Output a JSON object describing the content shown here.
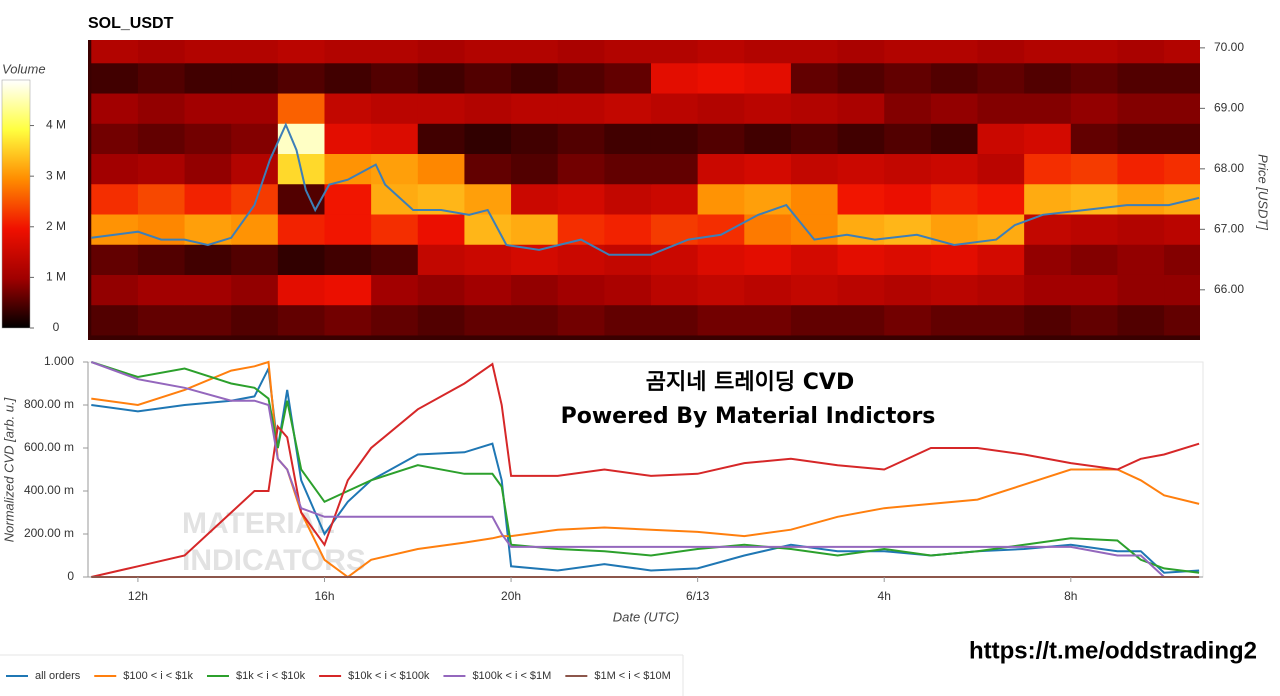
{
  "chart_data": [
    {
      "type": "heatmap",
      "title": "SOL_USDT",
      "xlim": [
        10.93,
        34.77
      ],
      "xbins": [
        11,
        12,
        13,
        14,
        15,
        16,
        17,
        18,
        19,
        20,
        21,
        22,
        23,
        24,
        25,
        26,
        27,
        28,
        29,
        30,
        31,
        32,
        33,
        34,
        35
      ],
      "ybins": [
        65.25,
        65.75,
        66.25,
        66.75,
        67.25,
        67.75,
        68.25,
        68.75,
        69.25,
        69.75,
        70.25
      ],
      "values": [
        [
          0.5,
          0.6,
          0.6,
          0.5,
          0.6,
          0.7,
          0.6,
          0.5,
          0.6,
          0.6,
          0.7,
          0.6,
          0.6,
          0.7,
          0.7,
          0.6,
          0.6,
          0.7,
          0.6,
          0.6,
          0.5,
          0.6,
          0.5,
          0.6
        ],
        [
          0.9,
          1.0,
          1.0,
          0.9,
          1.8,
          1.9,
          1.0,
          0.9,
          1.0,
          0.9,
          1.0,
          1.1,
          1.3,
          1.4,
          1.3,
          1.4,
          1.3,
          1.2,
          1.3,
          1.2,
          1.0,
          1.0,
          0.9,
          0.9
        ],
        [
          0.6,
          0.5,
          0.4,
          0.5,
          0.3,
          0.4,
          0.5,
          1.4,
          1.5,
          1.6,
          1.5,
          1.4,
          1.5,
          1.7,
          1.8,
          1.6,
          1.8,
          1.7,
          1.8,
          1.6,
          0.9,
          0.8,
          0.9,
          0.8
        ],
        [
          3.0,
          2.9,
          3.1,
          3.0,
          2.1,
          2.0,
          2.2,
          1.9,
          3.3,
          3.2,
          2.2,
          2.1,
          2.3,
          2.2,
          2.8,
          2.9,
          3.2,
          3.3,
          3.1,
          3.2,
          1.4,
          1.3,
          1.2,
          1.3
        ],
        [
          2.2,
          2.4,
          2.1,
          2.3,
          0.5,
          2.0,
          3.2,
          3.3,
          3.1,
          1.5,
          1.6,
          1.4,
          1.5,
          3.0,
          3.1,
          2.9,
          2.0,
          1.9,
          2.1,
          2.0,
          3.2,
          3.3,
          3.1,
          3.2
        ],
        [
          1.0,
          1.1,
          0.9,
          1.2,
          3.6,
          3.0,
          3.1,
          2.9,
          0.6,
          0.5,
          0.7,
          0.6,
          0.6,
          1.5,
          1.6,
          1.4,
          1.5,
          1.4,
          1.5,
          1.3,
          2.2,
          2.3,
          2.1,
          2.2
        ],
        [
          0.7,
          0.6,
          0.7,
          0.8,
          4.6,
          1.8,
          1.7,
          0.4,
          0.3,
          0.4,
          0.5,
          0.4,
          0.4,
          0.5,
          0.4,
          0.5,
          0.4,
          0.5,
          0.4,
          1.5,
          1.6,
          0.6,
          0.5,
          0.5
        ],
        [
          1.0,
          0.9,
          1.0,
          1.0,
          2.6,
          1.4,
          1.3,
          1.3,
          1.2,
          1.3,
          1.3,
          1.4,
          1.3,
          1.2,
          1.3,
          1.2,
          1.1,
          0.8,
          0.9,
          0.8,
          0.8,
          0.9,
          0.8,
          0.8
        ],
        [
          0.4,
          0.5,
          0.4,
          0.4,
          0.5,
          0.4,
          0.5,
          0.4,
          0.5,
          0.4,
          0.5,
          0.6,
          1.8,
          1.9,
          1.8,
          0.6,
          0.5,
          0.6,
          0.5,
          0.6,
          0.5,
          0.6,
          0.5,
          0.5
        ],
        [
          1.2,
          1.1,
          1.2,
          1.2,
          1.3,
          1.2,
          1.2,
          1.1,
          1.2,
          1.2,
          1.1,
          1.2,
          1.2,
          1.3,
          1.2,
          1.2,
          1.1,
          1.2,
          1.2,
          1.1,
          1.2,
          1.2,
          1.1,
          1.2
        ]
      ],
      "colormap": [
        "#000000",
        "#a00000",
        "#f01000",
        "#ff8c00",
        "#ffff40",
        "#ffffff"
      ],
      "colorbar": {
        "label": "Volume",
        "zlim": [
          0,
          4.9
        ],
        "ticks": [
          0,
          {
            "value": 1,
            "label": "1 M"
          },
          {
            "value": 2,
            "label": "2 M"
          },
          {
            "value": 3,
            "label": "3 M"
          },
          {
            "value": 4,
            "label": "4 M"
          }
        ]
      },
      "ylabel": "Price [USDT]",
      "ylim": [
        65.17,
        70.13
      ],
      "yticks": [
        {
          "value": 66,
          "label": "66.00"
        },
        {
          "value": 67,
          "label": "67.00"
        },
        {
          "value": 68,
          "label": "68.00"
        },
        {
          "value": 69,
          "label": "69.00"
        },
        {
          "value": 70,
          "label": "70.00"
        }
      ],
      "price": {
        "color": "#3d7fb8",
        "x": [
          11,
          11.5,
          12,
          12.5,
          13,
          13.5,
          14,
          14.5,
          14.83,
          15.17,
          15.4,
          15.6,
          15.8,
          16.1,
          16.5,
          17.1,
          17.3,
          17.9,
          18.5,
          19.1,
          19.5,
          19.9,
          20.6,
          21.5,
          22.1,
          23,
          23.8,
          24.5,
          25.3,
          25.9,
          26.5,
          27.2,
          27.8,
          28.7,
          29.5,
          30.4,
          30.8,
          31.4,
          32.3,
          33.2,
          34.1,
          34.75
        ],
        "values": [
          66.86,
          66.91,
          66.96,
          66.83,
          66.83,
          66.74,
          66.86,
          67.4,
          68.15,
          68.73,
          68.31,
          67.65,
          67.32,
          67.74,
          67.82,
          68.07,
          67.74,
          67.32,
          67.32,
          67.24,
          67.32,
          66.74,
          66.66,
          66.83,
          66.58,
          66.58,
          66.83,
          66.91,
          67.24,
          67.4,
          66.83,
          66.91,
          66.83,
          66.91,
          66.74,
          66.83,
          67.07,
          67.24,
          67.32,
          67.4,
          67.4,
          67.52
        ]
      }
    },
    {
      "type": "line",
      "xlabel": "Date (UTC)",
      "ylabel": "Normalized CVD [arb. u.]",
      "xlim": [
        10.93,
        34.77
      ],
      "xticks": [
        {
          "value": 12,
          "label": "12h"
        },
        {
          "value": 16,
          "label": "16h"
        },
        {
          "value": 20,
          "label": "20h"
        },
        {
          "value": 24,
          "label": "6/13"
        },
        {
          "value": 28,
          "label": "4h"
        },
        {
          "value": 32,
          "label": "8h"
        }
      ],
      "ylim": [
        0,
        1
      ],
      "yticks": [
        0,
        {
          "value": 0.2,
          "label": "200.00 m"
        },
        {
          "value": 0.4,
          "label": "400.00 m"
        },
        {
          "value": 0.6,
          "label": "600.00 m"
        },
        {
          "value": 0.8,
          "label": "800.00 m"
        },
        {
          "value": 1,
          "label": "1.000"
        }
      ],
      "annotations": [
        "곰지네 트레이딩 CVD",
        "Powered By Material Indictors"
      ],
      "watermark": [
        "MATERIAL",
        "INDICATORS"
      ],
      "legend": "bottom",
      "x": [
        11,
        12,
        13,
        14,
        14.5,
        14.8,
        15,
        15.2,
        15.5,
        16,
        16.5,
        17,
        18,
        19,
        19.6,
        19.8,
        20,
        21,
        22,
        23,
        24,
        25,
        26,
        27,
        28,
        29,
        30,
        31,
        32,
        33,
        33.5,
        34,
        34.75
      ],
      "series": [
        {
          "name": "all orders",
          "color": "#1f77b4",
          "values": [
            0.8,
            0.77,
            0.8,
            0.82,
            0.84,
            0.97,
            0.6,
            0.87,
            0.45,
            0.2,
            0.35,
            0.45,
            0.57,
            0.58,
            0.62,
            0.45,
            0.05,
            0.03,
            0.06,
            0.03,
            0.04,
            0.1,
            0.15,
            0.12,
            0.12,
            0.1,
            0.12,
            0.13,
            0.15,
            0.12,
            0.12,
            0.02,
            0.03
          ]
        },
        {
          "name": "$100 < i < $1k",
          "color": "#ff7f0e",
          "values": [
            0.83,
            0.8,
            0.87,
            0.96,
            0.98,
            1.0,
            0.55,
            0.5,
            0.3,
            0.08,
            0.0,
            0.08,
            0.13,
            0.16,
            0.18,
            0.19,
            0.19,
            0.22,
            0.23,
            0.22,
            0.21,
            0.19,
            0.22,
            0.28,
            0.32,
            0.34,
            0.36,
            0.43,
            0.5,
            0.5,
            0.45,
            0.38,
            0.34
          ]
        },
        {
          "name": "$1k < i < $10k",
          "color": "#2ca02c",
          "values": [
            1.0,
            0.93,
            0.97,
            0.9,
            0.88,
            0.83,
            0.6,
            0.82,
            0.5,
            0.35,
            0.4,
            0.45,
            0.52,
            0.48,
            0.48,
            0.42,
            0.15,
            0.13,
            0.12,
            0.1,
            0.13,
            0.15,
            0.13,
            0.1,
            0.13,
            0.1,
            0.12,
            0.15,
            0.18,
            0.17,
            0.08,
            0.04,
            0.02
          ]
        },
        {
          "name": "$10k < i < $100k",
          "color": "#d62728",
          "values": [
            0.0,
            0.05,
            0.1,
            0.3,
            0.4,
            0.4,
            0.7,
            0.65,
            0.3,
            0.15,
            0.45,
            0.6,
            0.78,
            0.9,
            0.99,
            0.8,
            0.47,
            0.47,
            0.5,
            0.47,
            0.48,
            0.53,
            0.55,
            0.52,
            0.5,
            0.6,
            0.6,
            0.57,
            0.53,
            0.5,
            0.55,
            0.57,
            0.62
          ]
        },
        {
          "name": "$100k < i < $1M",
          "color": "#9467bd",
          "values": [
            1.0,
            0.92,
            0.88,
            0.82,
            0.82,
            0.8,
            0.55,
            0.5,
            0.32,
            0.28,
            0.28,
            0.28,
            0.28,
            0.28,
            0.28,
            0.2,
            0.14,
            0.14,
            0.14,
            0.14,
            0.14,
            0.14,
            0.14,
            0.14,
            0.14,
            0.14,
            0.14,
            0.14,
            0.14,
            0.1,
            0.1,
            0.0,
            0.0
          ]
        },
        {
          "name": "$1M < i < $10M",
          "color": "#8c564b",
          "values": [
            0,
            0,
            0,
            0,
            0,
            0,
            0,
            0,
            0,
            0,
            0,
            0,
            0,
            0,
            0,
            0,
            0,
            0,
            0,
            0,
            0,
            0,
            0,
            0,
            0,
            0,
            0,
            0,
            0,
            0,
            0,
            0,
            0
          ]
        }
      ]
    }
  ],
  "link": "https://t.me/oddstrading2"
}
